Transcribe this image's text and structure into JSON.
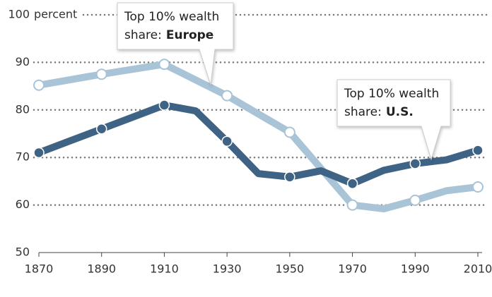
{
  "chart_data": {
    "type": "line",
    "y_unit": "percent",
    "xlim": [
      1870,
      2010
    ],
    "xticks": [
      1870,
      1890,
      1910,
      1930,
      1950,
      1970,
      1990,
      2010
    ],
    "ylim": [
      50,
      100
    ],
    "yticks": [
      50,
      60,
      70,
      80,
      90,
      100
    ],
    "grid": true,
    "annotation_text": [
      "Top 10% wealth",
      "share:"
    ],
    "series": [
      {
        "name": "Europe",
        "color": "#a9c3d7",
        "x": [
          1870,
          1890,
          1910,
          1930,
          1950,
          1970,
          1980,
          1990,
          2000,
          2010
        ],
        "values": [
          85.2,
          87.5,
          89.6,
          83,
          75.3,
          60,
          59.2,
          61,
          63,
          63.8
        ]
      },
      {
        "name": "U.S.",
        "color": "#3e6384",
        "x": [
          1870,
          1880,
          1890,
          1900,
          1910,
          1920,
          1930,
          1940,
          1950,
          1960,
          1970,
          1980,
          1990,
          2000,
          2010
        ],
        "values": [
          71,
          73.5,
          76,
          78.5,
          81,
          79.8,
          73.4,
          66.6,
          65.9,
          67.2,
          64.5,
          67.3,
          68.7,
          69.5,
          71.5
        ]
      }
    ]
  }
}
